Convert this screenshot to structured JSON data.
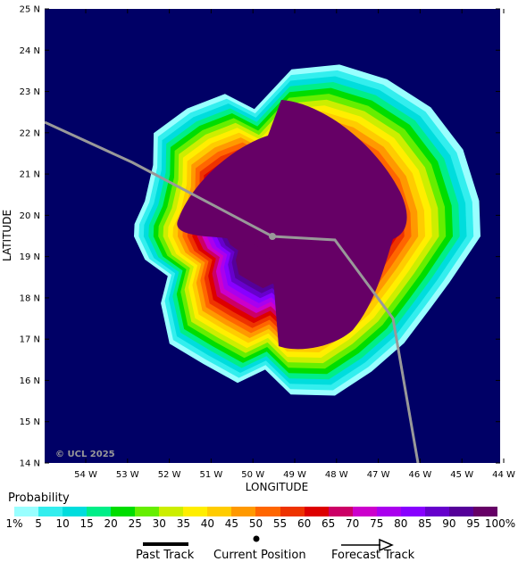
{
  "map": {
    "y_axis_title": "LATITUDE",
    "x_axis_title": "LONGITUDE",
    "copyright": "© UCL 2025",
    "lat_labels": [
      "25 N",
      "24 N",
      "23 N",
      "22 N",
      "21 N",
      "20 N",
      "19 N",
      "18 N",
      "17 N",
      "16 N",
      "15 N",
      "14 N"
    ],
    "lon_labels": [
      "54 W",
      "53 W",
      "52 W",
      "51 W",
      "50 W",
      "49 W",
      "48 W",
      "47 W",
      "46 W",
      "45 W",
      "44 W"
    ],
    "ocean_color": "#000066",
    "track_color": "#999999"
  },
  "legend": {
    "title": "Probability",
    "scale_labels": [
      "1%",
      "5",
      "10",
      "15",
      "20",
      "25",
      "30",
      "35",
      "40",
      "45",
      "50",
      "55",
      "60",
      "65",
      "70",
      "75",
      "80",
      "85",
      "90",
      "95",
      "100%"
    ],
    "colors": [
      "#99ffff",
      "#33eeee",
      "#00dddd",
      "#00ee88",
      "#00dd00",
      "#66ee00",
      "#ccee00",
      "#ffee00",
      "#ffcc00",
      "#ff9900",
      "#ff6600",
      "#ee3300",
      "#dd0000",
      "#cc0066",
      "#cc00cc",
      "#aa00ee",
      "#8800ff",
      "#6600cc",
      "#550099",
      "#660066"
    ],
    "past_track": "Past Track",
    "current_position": "Current Position",
    "forecast_track": "Forecast Track"
  }
}
